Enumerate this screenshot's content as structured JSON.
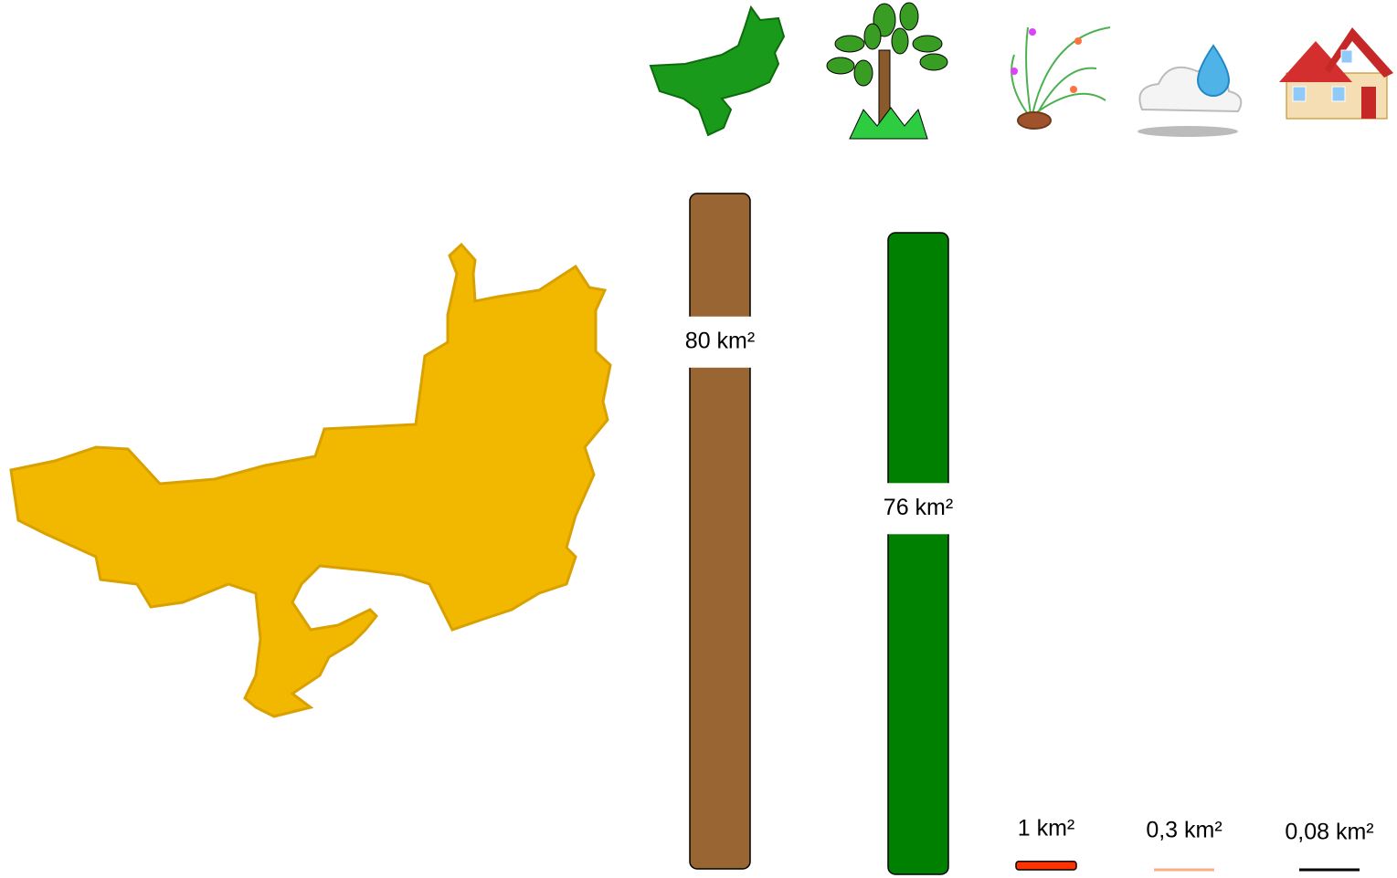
{
  "chart_data": {
    "type": "bar",
    "categories": [
      null,
      null,
      null,
      null,
      null
    ],
    "values": [
      80,
      76,
      1,
      0.3,
      0.08
    ],
    "value_labels": [
      "80 km²",
      "76 km²",
      "1 km²",
      "0,3 km²",
      "0,08 km²"
    ],
    "colors": [
      "#996633",
      "#008000",
      "#ff3300",
      "#f4b183",
      "#000000"
    ]
  }
}
